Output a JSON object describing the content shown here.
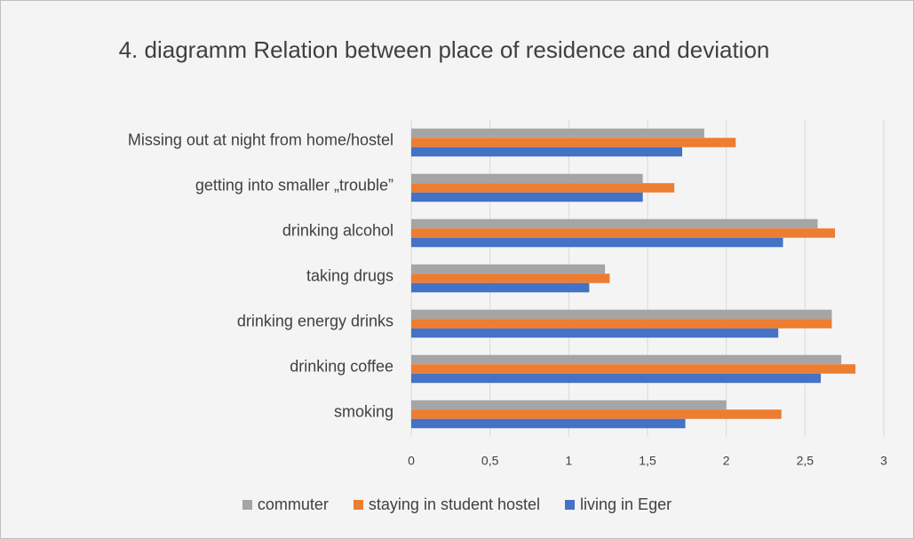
{
  "chart_data": {
    "type": "bar",
    "orientation": "horizontal",
    "title": "4. diagramm Relation between place of residence and deviation",
    "categories": [
      "Missing out at night from home/hostel",
      "getting into smaller „trouble”",
      "drinking alcohol",
      "taking drugs",
      "drinking energy drinks",
      "drinking coffee",
      "smoking"
    ],
    "series": [
      {
        "name": "commuter",
        "color": "#a5a5a5",
        "values": [
          1.86,
          1.47,
          2.58,
          1.23,
          2.67,
          2.73,
          2.0
        ]
      },
      {
        "name": "staying in student hostel",
        "color": "#ed7d31",
        "values": [
          2.06,
          1.67,
          2.69,
          1.26,
          2.67,
          2.82,
          2.35
        ]
      },
      {
        "name": "living in Eger",
        "color": "#4472c4",
        "values": [
          1.72,
          1.47,
          2.36,
          1.13,
          2.33,
          2.6,
          1.74
        ]
      }
    ],
    "xlim": [
      0,
      3
    ],
    "xticks": [
      0,
      {
        "value": 0.5,
        "label": "0,5"
      },
      1,
      {
        "value": 1.5,
        "label": "1,5"
      },
      2,
      {
        "value": 2.5,
        "label": "2,5"
      },
      3
    ],
    "grid": true,
    "legend": "bottom"
  }
}
